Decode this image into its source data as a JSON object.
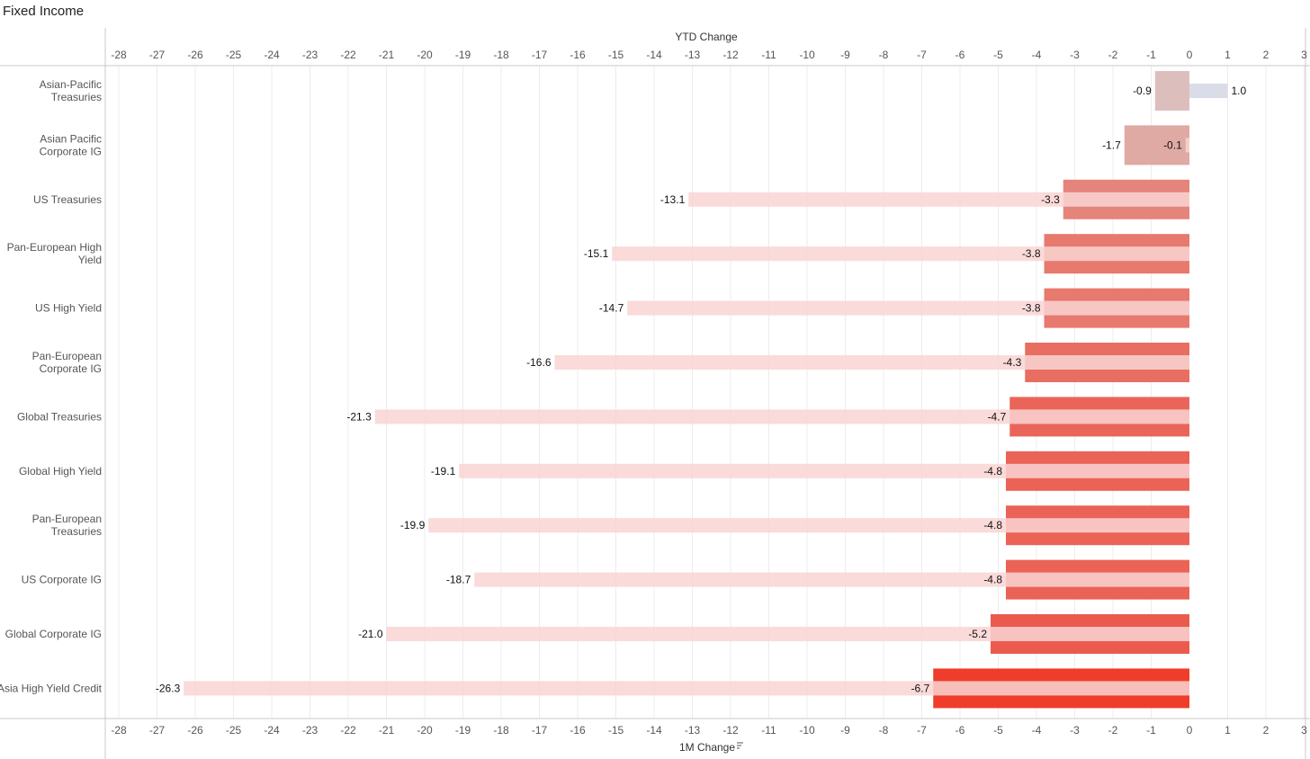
{
  "title": "Fixed Income",
  "chart_data": {
    "type": "bar",
    "top_axis_title": "YTD Change",
    "bottom_axis_title": "1M Change",
    "x_range": [
      -28.4,
      3
    ],
    "ticks": [
      -28,
      -27,
      -26,
      -25,
      -24,
      -23,
      -22,
      -21,
      -20,
      -19,
      -18,
      -17,
      -16,
      -15,
      -14,
      -13,
      -12,
      -11,
      -10,
      -9,
      -8,
      -7,
      -6,
      -5,
      -4,
      -3,
      -2,
      -1,
      0,
      1,
      2,
      3
    ],
    "grid": true,
    "sorted_by": "1M Change",
    "categories": [
      [
        "Asian-Pacific",
        "Treasuries"
      ],
      [
        "Asian Pacific",
        "Corporate IG"
      ],
      [
        "US Treasuries"
      ],
      [
        "Pan-European High",
        "Yield"
      ],
      [
        "US High Yield"
      ],
      [
        "Pan-European",
        "Corporate IG"
      ],
      [
        "Global Treasuries"
      ],
      [
        "Global High Yield"
      ],
      [
        "Pan-European",
        "Treasuries"
      ],
      [
        "US Corporate IG"
      ],
      [
        "Global Corporate IG"
      ],
      [
        "Asia High Yield Credit"
      ]
    ],
    "series": [
      {
        "name": "YTD Change",
        "values": [
          1.0,
          -0.1,
          -13.1,
          -15.1,
          -14.7,
          -16.6,
          -21.3,
          -19.1,
          -19.9,
          -18.7,
          -21.0,
          -26.3
        ],
        "labels": [
          "1.0",
          "-0.1",
          "-13.1",
          "-15.1",
          "-14.7",
          "-16.6",
          "-21.3",
          "-19.1",
          "-19.9",
          "-18.7",
          "-21.0",
          "-26.3"
        ]
      },
      {
        "name": "1M Change",
        "values": [
          -0.9,
          -1.7,
          -3.3,
          -3.8,
          -3.8,
          -4.3,
          -4.7,
          -4.8,
          -4.8,
          -4.8,
          -5.2,
          -6.7
        ],
        "labels": [
          "-0.9",
          "-1.7",
          "-3.3",
          "-3.8",
          "-3.8",
          "-4.3",
          "-4.7",
          "-4.8",
          "-4.8",
          "-4.8",
          "-5.2",
          "-6.7"
        ]
      }
    ],
    "colors": {
      "ytd_negative": "#f9d5d4",
      "ytd_positive": "#d3d7e3",
      "m1_light": "#dcbfbd",
      "m1_dark": "#f03c2a",
      "grid": "#ececec",
      "axis_line": "#c8c8c8"
    }
  }
}
